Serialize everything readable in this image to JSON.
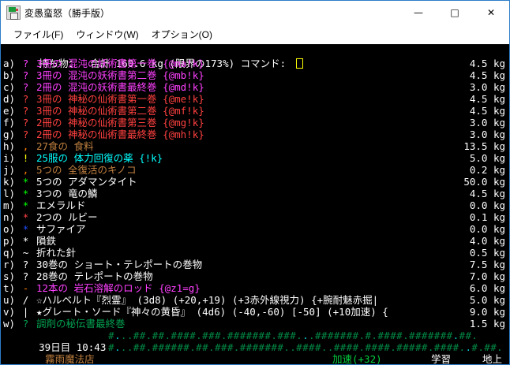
{
  "window": {
    "title": "変愚蛮怒（勝手版）",
    "controls": {
      "minimize": "—",
      "maximize": "□",
      "close": "✕"
    }
  },
  "menu": {
    "items": [
      {
        "name": "menu-item-file",
        "label": "ファイル(F)"
      },
      {
        "name": "menu-item-window",
        "label": "ウィンドウ(W)"
      },
      {
        "name": "menu-item-options",
        "label": "オプション(O)"
      }
    ]
  },
  "palette": {
    "white": "#ffffff",
    "magenta": "#ff40ff",
    "red": "#ff4040",
    "orange": "#ff8000",
    "light_umber": "#c08040",
    "yellow": "#ffff00",
    "cyan": "#00ffff",
    "bright_green": "#00ff00",
    "blue": "#2050ff",
    "green": "#00a050",
    "light_green": "#00d040",
    "map_green": "#008844",
    "map_cyan": "#00d0d0",
    "cursor_yellow": "#ffff00"
  },
  "terminal": {
    "header": {
      "text": "持ち物：  合計 160.6 kg (限界の173%) コマンド: "
    },
    "items": [
      {
        "letter": "a)",
        "symbol": "?",
        "symbol_color": "#ff40ff",
        "text": "3冊の 混沌の妖術書第一巻 {@ma!k}",
        "text_color": "#ff40ff",
        "weight": "4.5 kg"
      },
      {
        "letter": "b)",
        "symbol": "?",
        "symbol_color": "#ff40ff",
        "text": "3冊の 混沌の妖術書第二巻 {@mb!k}",
        "text_color": "#ff40ff",
        "weight": "4.5 kg"
      },
      {
        "letter": "c)",
        "symbol": "?",
        "symbol_color": "#ff40ff",
        "text": "2冊の 混沌の妖術書最終巻 {@md!k}",
        "text_color": "#ff40ff",
        "weight": "3.0 kg"
      },
      {
        "letter": "d)",
        "symbol": "?",
        "symbol_color": "#ff4040",
        "text": "3冊の 神秘の仙術書第一巻 {@me!k}",
        "text_color": "#ff4040",
        "weight": "4.5 kg"
      },
      {
        "letter": "e)",
        "symbol": "?",
        "symbol_color": "#ff4040",
        "text": "3冊の 神秘の仙術書第二巻 {@mf!k}",
        "text_color": "#ff4040",
        "weight": "4.5 kg"
      },
      {
        "letter": "f)",
        "symbol": "?",
        "symbol_color": "#ff4040",
        "text": "2冊の 神秘の仙術書第三巻 {@mg!k}",
        "text_color": "#ff4040",
        "weight": "3.0 kg"
      },
      {
        "letter": "g)",
        "symbol": "?",
        "symbol_color": "#ff4040",
        "text": "2冊の 神秘の仙術書最終巻 {@mh!k}",
        "text_color": "#ff4040",
        "weight": "3.0 kg"
      },
      {
        "letter": "h)",
        "symbol": ",",
        "symbol_color": "#ff8000",
        "text": "27食の 食料",
        "text_color": "#c08040",
        "weight": "13.5 kg"
      },
      {
        "letter": "i)",
        "symbol": "!",
        "symbol_color": "#ffff00",
        "text": "25服の 体力回復の薬 {!k}",
        "text_color": "#00ffff",
        "weight": "5.0 kg"
      },
      {
        "letter": "j)",
        "symbol": ",",
        "symbol_color": "#ff8000",
        "text": "5つの 全復活のキノコ",
        "text_color": "#c08040",
        "weight": "0.2 kg"
      },
      {
        "letter": "k)",
        "symbol": "*",
        "symbol_color": "#00ff00",
        "text": "5つの アダマンタイト",
        "text_color": "#ffffff",
        "weight": "50.0 kg"
      },
      {
        "letter": "l)",
        "symbol": "*",
        "symbol_color": "#00ff00",
        "text": "3つの 竜の鱗",
        "text_color": "#ffffff",
        "weight": "4.5 kg"
      },
      {
        "letter": "m)",
        "symbol": "*",
        "symbol_color": "#00ff00",
        "text": "エメラルド",
        "text_color": "#ffffff",
        "weight": "0.0 kg"
      },
      {
        "letter": "n)",
        "symbol": "*",
        "symbol_color": "#ff4040",
        "text": "2つの ルビー",
        "text_color": "#ffffff",
        "weight": "0.1 kg"
      },
      {
        "letter": "o)",
        "symbol": "*",
        "symbol_color": "#2050ff",
        "text": "サファイア",
        "text_color": "#ffffff",
        "weight": "0.0 kg"
      },
      {
        "letter": "p)",
        "symbol": "*",
        "symbol_color": "#ffffff",
        "text": "隕鉄",
        "text_color": "#ffffff",
        "weight": "4.0 kg"
      },
      {
        "letter": "q)",
        "symbol": "~",
        "symbol_color": "#ffffff",
        "text": "折れた針",
        "text_color": "#ffffff",
        "weight": "0.5 kg"
      },
      {
        "letter": "r)",
        "symbol": "?",
        "symbol_color": "#ffffff",
        "text": "30巻の ショート・テレポートの巻物",
        "text_color": "#ffffff",
        "weight": "7.5 kg"
      },
      {
        "letter": "s)",
        "symbol": "?",
        "symbol_color": "#ffffff",
        "text": "28巻の テレポートの巻物",
        "text_color": "#ffffff",
        "weight": "7.0 kg"
      },
      {
        "letter": "t)",
        "symbol": "-",
        "symbol_color": "#ff8000",
        "text": "12本の 岩石溶解のロッド {@z1=g}",
        "text_color": "#ff40ff",
        "weight": "6.0 kg"
      },
      {
        "letter": "u)",
        "symbol": "/",
        "symbol_color": "#ffffff",
        "text": "☆ハルベルト『烈霊』 (3d8) (+20,+19) (+3赤外線視力) {+腕耐魅赤掘|",
        "text_color": "#ffffff",
        "weight": "5.0 kg"
      },
      {
        "letter": "v)",
        "symbol": "|",
        "symbol_color": "#ffffff",
        "text": "★グレート・ソード『神々の黄昏』 (4d6) (-40,-60) [-50] (+10加速) {",
        "text_color": "#ffffff",
        "weight": "9.0 kg"
      },
      {
        "letter": "w)",
        "symbol": "?",
        "symbol_color": "#00a050",
        "text": "調剤の秘伝書最終巻",
        "text_color": "#00a050",
        "weight": "1.5 kg"
      }
    ],
    "status": {
      "day_time": "39日目 10:43",
      "location": "霧雨魔法店",
      "map_rows": [
        {
          "text": "#...##.##.####.###.#######.###...#######.#.####.#######.##.",
          "cyan_dots": [
            1,
            31,
            43,
            55
          ]
        },
        {
          "text": "#...##.######.##.###.#######..####..####.####.#####.####..#.##.",
          "cyan_dots": [
            1,
            21,
            44,
            57
          ]
        }
      ],
      "haste": "加速(+32)",
      "haste_color": "#00d040",
      "learning": "学習",
      "depth": "地上"
    }
  }
}
